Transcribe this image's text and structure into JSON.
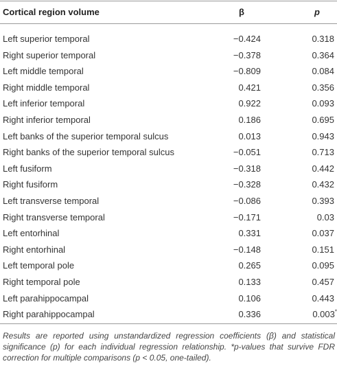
{
  "table": {
    "header": [
      "Cortical region volume",
      "β",
      "p"
    ],
    "rows": [
      [
        "Left superior temporal",
        "−0.424",
        "0.318"
      ],
      [
        "Right superior temporal",
        "−0.378",
        "0.364"
      ],
      [
        "Left middle temporal",
        "−0.809",
        "0.084"
      ],
      [
        "Right middle temporal",
        "0.421",
        "0.356"
      ],
      [
        "Left inferior temporal",
        "0.922",
        "0.093"
      ],
      [
        "Right inferior temporal",
        "0.186",
        "0.695"
      ],
      [
        "Left banks of the superior temporal sulcus",
        "0.013",
        "0.943"
      ],
      [
        "Right banks of the superior temporal sulcus",
        "−0.051",
        "0.713"
      ],
      [
        "Left fusiform",
        "−0.318",
        "0.442"
      ],
      [
        "Right fusiform",
        "−0.328",
        "0.432"
      ],
      [
        "Left transverse temporal",
        "−0.086",
        "0.393"
      ],
      [
        "Right transverse temporal",
        "−0.171",
        "0.03"
      ],
      [
        "Left entorhinal",
        "0.331",
        "0.037"
      ],
      [
        "Right entorhinal",
        "−0.148",
        "0.151"
      ],
      [
        "Left temporal pole",
        "0.265",
        "0.095"
      ],
      [
        "Right temporal pole",
        "0.133",
        "0.457"
      ],
      [
        "Left parahippocampal",
        "0.106",
        "0.443"
      ],
      [
        "Right parahippocampal",
        "0.336",
        "0.003",
        "*"
      ]
    ],
    "footnote": "Results are reported using unstandardized regression coefficients (β) and statistical significance (p) for each individual regression relationship. *p-values that survive FDR correction for multiple comparisons (p < 0.05, one-tailed)."
  }
}
